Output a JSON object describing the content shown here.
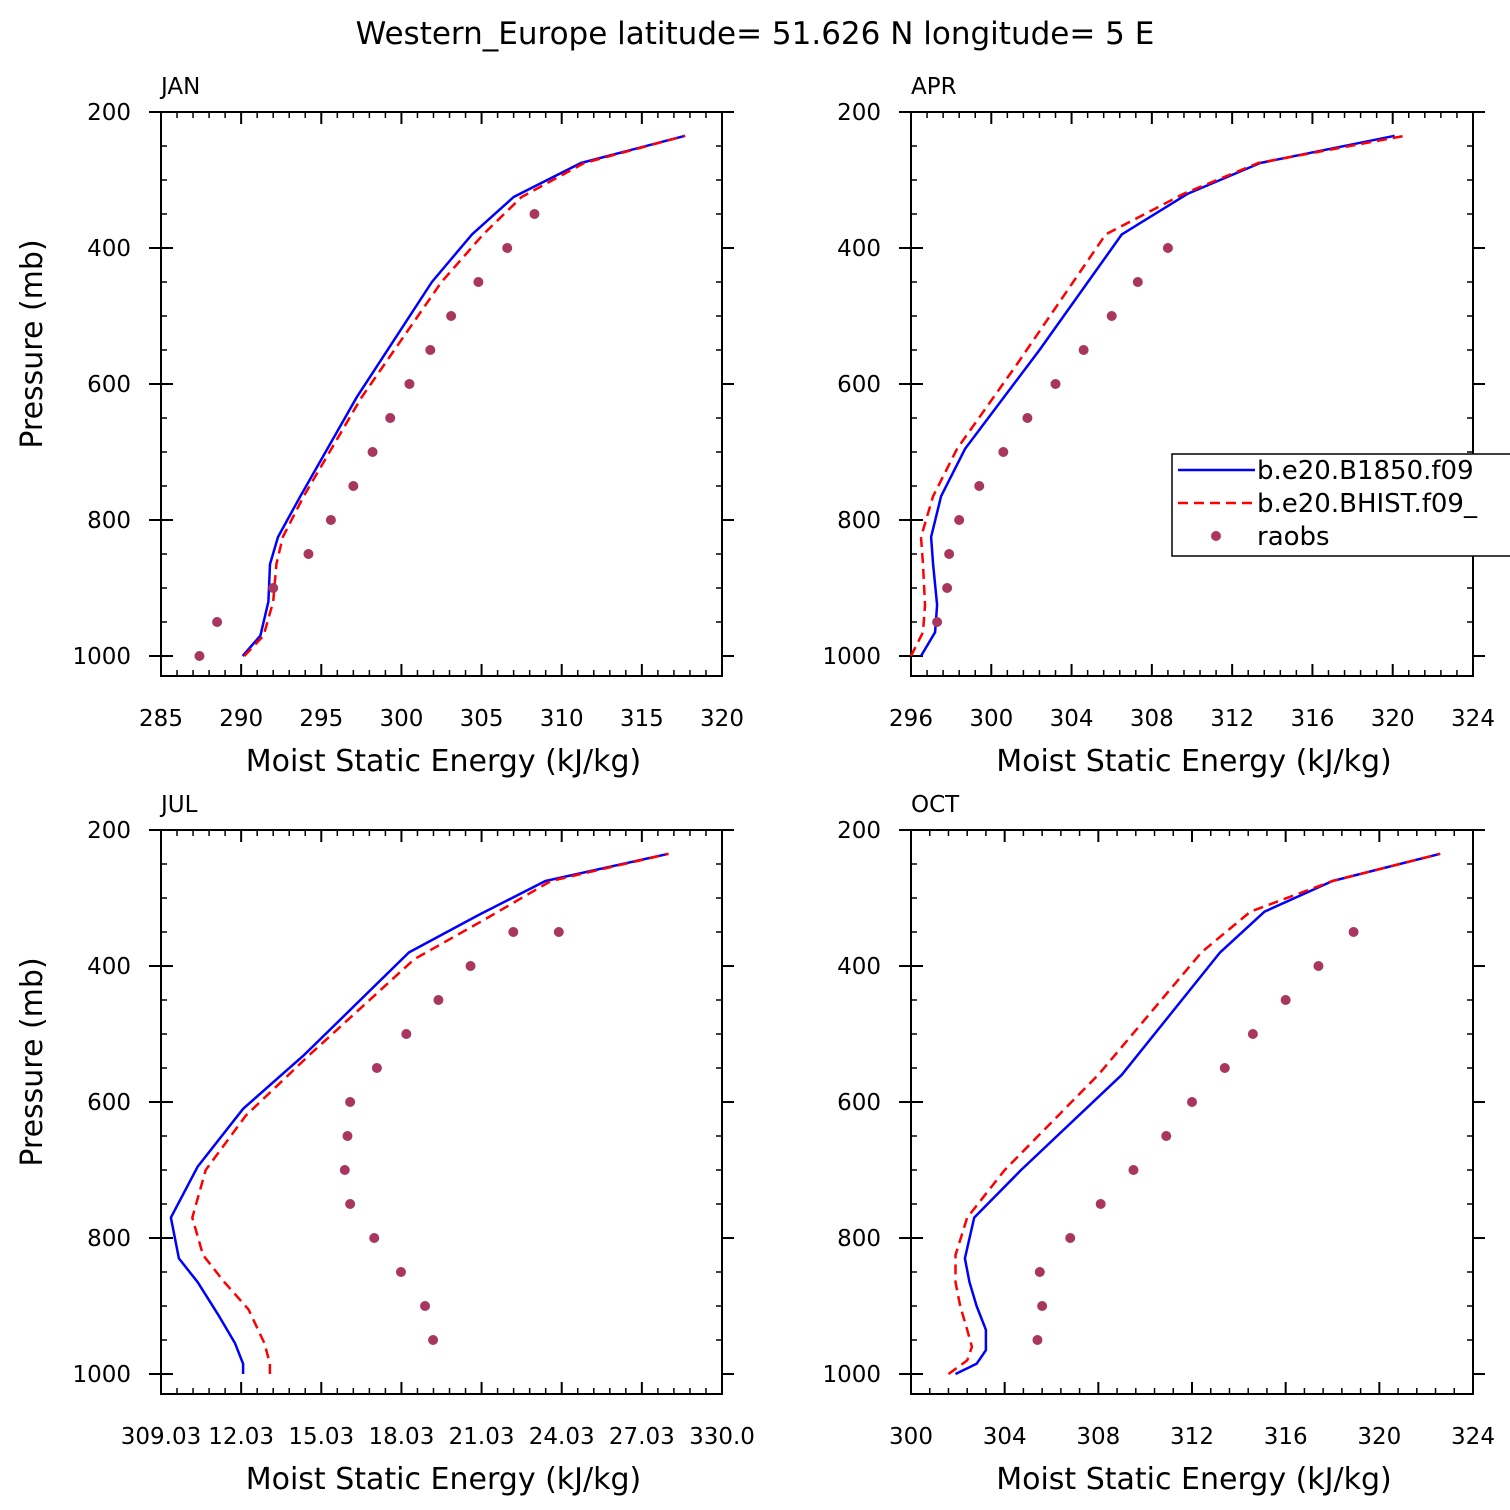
{
  "title": "Western_Europe  latitude= 51.626 N longitude= 5 E",
  "legend": {
    "entries": [
      "b.e20.B1850.f09",
      "b.e20.BHIST.f09_",
      "raobs"
    ]
  },
  "colors": {
    "b1850": "#0000ff",
    "bhist": "#ff0000",
    "raobs": "#a8365e"
  },
  "chart_data": [
    {
      "type": "line",
      "panel_title": "JAN",
      "xlabel": "Moist Static Energy (kJ/kg)",
      "ylabel": "Pressure (mb)",
      "xlim": [
        285,
        320
      ],
      "ylim": [
        1000,
        200
      ],
      "xticks": [
        "285",
        "290",
        "295",
        "300",
        "305",
        "310",
        "315",
        "320"
      ],
      "yticks": [
        "200",
        "400",
        "600",
        "800",
        "1000"
      ],
      "series": [
        {
          "name": "b.e20.B1850.f09",
          "style": "solid",
          "x": [
            290.1,
            291.2,
            291.7,
            291.8,
            292.3,
            293.7,
            297.2,
            301.9,
            304.4,
            307.0,
            311.2,
            317.7
          ],
          "y": [
            1000,
            970,
            920,
            865,
            825,
            765,
            620,
            450,
            380,
            325,
            275,
            235
          ]
        },
        {
          "name": "b.e20.BHIST.f09_",
          "style": "dashed",
          "x": [
            290.2,
            291.4,
            292.0,
            292.2,
            292.6,
            293.9,
            297.5,
            302.5,
            305.1,
            307.5,
            311.4,
            317.7
          ],
          "y": [
            1000,
            970,
            920,
            865,
            825,
            765,
            620,
            450,
            380,
            325,
            275,
            235
          ]
        },
        {
          "name": "raobs",
          "style": "dots",
          "x": [
            287.4,
            288.5,
            292.0,
            294.2,
            295.6,
            297.0,
            298.2,
            299.3,
            300.5,
            301.8,
            303.1,
            304.8,
            306.6,
            308.3
          ],
          "y": [
            1000,
            950,
            900,
            850,
            800,
            750,
            700,
            650,
            600,
            550,
            500,
            450,
            400,
            350
          ]
        }
      ]
    },
    {
      "type": "line",
      "panel_title": "APR",
      "xlabel": "Moist Static Energy (kJ/kg)",
      "ylabel": "",
      "xlim": [
        296,
        324
      ],
      "ylim": [
        1000,
        200
      ],
      "xticks": [
        "296",
        "300",
        "304",
        "308",
        "312",
        "316",
        "320",
        "324"
      ],
      "yticks": [
        "200",
        "400",
        "600",
        "800",
        "1000"
      ],
      "series": [
        {
          "name": "b.e20.B1850.f09",
          "style": "solid",
          "x": [
            296.5,
            297.2,
            297.3,
            297.1,
            297.0,
            297.5,
            298.7,
            302.4,
            306.5,
            309.8,
            313.4,
            320.1
          ],
          "y": [
            1000,
            965,
            925,
            865,
            825,
            765,
            695,
            550,
            380,
            320,
            275,
            235
          ]
        },
        {
          "name": "b.e20.BHIST.f09_",
          "style": "dashed",
          "x": [
            296.0,
            296.6,
            296.7,
            296.6,
            296.5,
            297.1,
            298.3,
            301.3,
            305.7,
            309.6,
            313.3,
            320.6
          ],
          "y": [
            1000,
            965,
            925,
            865,
            825,
            765,
            695,
            570,
            380,
            320,
            275,
            235
          ]
        },
        {
          "name": "raobs",
          "style": "dots",
          "x": [
            297.3,
            297.8,
            297.9,
            298.4,
            299.4,
            300.6,
            301.8,
            303.2,
            304.6,
            306.0,
            307.3,
            308.8
          ],
          "y": [
            950,
            900,
            850,
            800,
            750,
            700,
            650,
            600,
            550,
            500,
            450,
            400
          ]
        }
      ]
    },
    {
      "type": "line",
      "panel_title": "JUL",
      "xlabel": "Moist Static Energy (kJ/kg)",
      "ylabel": "Pressure (mb)",
      "xlim": [
        309.03,
        330.0
      ],
      "ylim": [
        1000,
        200
      ],
      "xticks": [
        "309.03",
        "12.03",
        "15.03",
        "18.03",
        "21.03",
        "24.03",
        "27.03",
        "330.0"
      ],
      "yticks": [
        "200",
        "400",
        "600",
        "800",
        "1000"
      ],
      "series": [
        {
          "name": "b.e20.B1850.f09",
          "style": "solid",
          "x": [
            312.1,
            312.1,
            311.8,
            311.2,
            310.4,
            309.7,
            309.4,
            310.4,
            312.1,
            314.4,
            318.3,
            320.9,
            323.4,
            328.0
          ],
          "y": [
            1000,
            985,
            955,
            915,
            865,
            830,
            770,
            695,
            610,
            530,
            380,
            325,
            275,
            235
          ]
        },
        {
          "name": "b.e20.BHIST.f09_",
          "style": "dashed",
          "x": [
            313.1,
            313.1,
            312.9,
            312.3,
            311.4,
            310.6,
            310.2,
            310.7,
            312.2,
            314.6,
            318.5,
            321.2,
            323.6,
            328.0
          ],
          "y": [
            1000,
            985,
            955,
            905,
            865,
            825,
            770,
            700,
            620,
            530,
            390,
            330,
            275,
            235
          ]
        },
        {
          "name": "raobs",
          "style": "dots",
          "x": [
            319.2,
            318.9,
            318.0,
            317.0,
            316.1,
            315.9,
            316.0,
            316.1,
            317.1,
            318.2,
            319.4,
            320.6,
            322.2,
            323.9
          ],
          "y": [
            950,
            900,
            850,
            800,
            750,
            700,
            650,
            600,
            550,
            500,
            450,
            400,
            350,
            350
          ]
        }
      ]
    },
    {
      "type": "line",
      "panel_title": "OCT",
      "xlabel": "Moist Static Energy (kJ/kg)",
      "ylabel": "",
      "xlim": [
        300,
        324
      ],
      "ylim": [
        1000,
        200
      ],
      "xticks": [
        "300",
        "304",
        "308",
        "312",
        "316",
        "320",
        "324"
      ],
      "yticks": [
        "200",
        "400",
        "600",
        "800",
        "1000"
      ],
      "series": [
        {
          "name": "b.e20.B1850.f09",
          "style": "solid",
          "x": [
            301.9,
            302.8,
            303.2,
            303.2,
            302.8,
            302.5,
            302.3,
            302.7,
            304.7,
            309.0,
            313.2,
            315.1,
            318.0,
            322.6
          ],
          "y": [
            1000,
            985,
            965,
            935,
            900,
            865,
            830,
            770,
            700,
            560,
            380,
            320,
            275,
            235
          ]
        },
        {
          "name": "b.e20.BHIST.f09_",
          "style": "dashed",
          "x": [
            301.6,
            302.4,
            302.6,
            302.4,
            302.1,
            301.9,
            301.9,
            302.4,
            304.0,
            308.0,
            312.4,
            314.5,
            318.0,
            322.6
          ],
          "y": [
            1000,
            980,
            960,
            935,
            900,
            865,
            825,
            770,
            700,
            560,
            380,
            320,
            275,
            235
          ]
        },
        {
          "name": "raobs",
          "style": "dots",
          "x": [
            305.4,
            305.6,
            305.5,
            306.8,
            308.1,
            309.5,
            310.9,
            312.0,
            313.4,
            314.6,
            316.0,
            317.4,
            318.9
          ],
          "y": [
            950,
            900,
            850,
            800,
            750,
            700,
            650,
            600,
            550,
            500,
            450,
            400,
            350
          ]
        }
      ]
    }
  ]
}
